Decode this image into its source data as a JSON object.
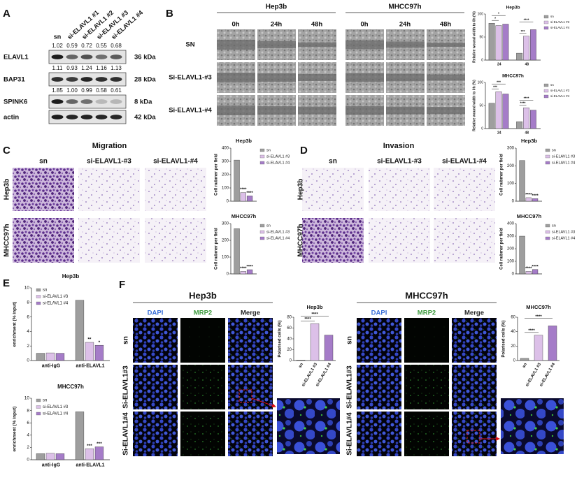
{
  "A": {
    "label": "A",
    "columns": [
      "sn",
      "si-ELAVL1 #1",
      "si-ELAVL1 #2",
      "si-ELAVL1 #3",
      "si-ELAVL1 #4"
    ],
    "rows": [
      {
        "name": "ELAVL1",
        "quant": [
          "1.02",
          "0.59",
          "0.72",
          "0.55",
          "0.68"
        ],
        "size": "36 kDa"
      },
      {
        "name": "BAP31",
        "quant": [
          "1.11",
          "0.93",
          "1.24",
          "1.16",
          "1.13"
        ],
        "size": "28 kDa"
      },
      {
        "name": "SPINK6",
        "quant": [
          "1.85",
          "1.00",
          "0.99",
          "0.58",
          "0.61"
        ],
        "size": "8 kDa"
      },
      {
        "name": "actin",
        "size": "42 kDa"
      }
    ]
  },
  "B": {
    "label": "B",
    "groups": [
      "Hep3b",
      "MHCC97h"
    ],
    "times": [
      "0h",
      "24h",
      "48h"
    ],
    "rows": [
      "SN",
      "Si-ELAVL1-#3",
      "Si-ELAVL1-#4"
    ],
    "charts": [
      {
        "type": "bar",
        "title": "Hep3b",
        "ylabel": "Relative wound width to 0h (%)",
        "categories": [
          "24",
          "48"
        ],
        "series": [
          {
            "name": "sn",
            "color": "#9e9e9e",
            "values": [
              80,
              15
            ]
          },
          {
            "name": "si-ELAVL1 #3",
            "color": "#dcc0e8",
            "values": [
              75,
              52
            ]
          },
          {
            "name": "si-ELAVL1 #4",
            "color": "#a57cc8",
            "values": [
              78,
              66
            ]
          }
        ],
        "ylim": [
          0,
          100
        ],
        "yticks": [
          0,
          50,
          100
        ],
        "stars": [
          "*",
          "*",
          "***",
          "****"
        ]
      },
      {
        "type": "bar",
        "title": "MHCC97h",
        "ylabel": "Relative wound width to 0h (%)",
        "categories": [
          "24",
          "48"
        ],
        "series": [
          {
            "name": "sn",
            "color": "#9e9e9e",
            "values": [
              55,
              15
            ]
          },
          {
            "name": "si-ELAVL1 #3",
            "color": "#dcc0e8",
            "values": [
              80,
              45
            ]
          },
          {
            "name": "si-ELAVL1 #4",
            "color": "#a57cc8",
            "values": [
              75,
              40
            ]
          }
        ],
        "ylim": [
          0,
          100
        ],
        "yticks": [
          0,
          50,
          100
        ],
        "stars": [
          "***",
          "***",
          "****",
          "****"
        ]
      }
    ]
  },
  "C": {
    "label": "C",
    "title": "Migration",
    "columns": [
      "sn",
      "si-ELAVL1-#3",
      "si-ELAVL1-#4"
    ],
    "rows": [
      "Hep3b",
      "MHCC97h"
    ],
    "charts": [
      {
        "type": "bar",
        "title": "Hep3b",
        "ylabel": "Cell nubmer per field",
        "series": [
          {
            "name": "sn",
            "color": "#9e9e9e",
            "values": [
              310
            ]
          },
          {
            "name": "si-ELAVL1 #3",
            "color": "#dcc0e8",
            "values": [
              65
            ]
          },
          {
            "name": "si-ELAVL1 #4",
            "color": "#a57cc8",
            "values": [
              40
            ]
          }
        ],
        "ylim": [
          0,
          400
        ],
        "yticks": [
          0,
          100,
          200,
          300,
          400
        ],
        "stars": [
          "****",
          "****"
        ]
      },
      {
        "type": "bar",
        "title": "MHCC97h",
        "ylabel": "Cell nubmer per field",
        "series": [
          {
            "name": "sn",
            "color": "#9e9e9e",
            "values": [
              270
            ]
          },
          {
            "name": "si-ELAVL1 #3",
            "color": "#dcc0e8",
            "values": [
              15
            ]
          },
          {
            "name": "si-ELAVL1 #4",
            "color": "#a57cc8",
            "values": [
              25
            ]
          }
        ],
        "ylim": [
          0,
          300
        ],
        "yticks": [
          0,
          100,
          200,
          300
        ],
        "stars": [
          "****",
          "****"
        ]
      }
    ]
  },
  "D": {
    "label": "D",
    "title": "Invasion",
    "columns": [
      "sn",
      "si-ELAVL1-#3",
      "si-ELAVL1-#4"
    ],
    "rows": [
      "Hep3b",
      "MHCC97h"
    ],
    "charts": [
      {
        "type": "bar",
        "title": "Hep3b",
        "ylabel": "Cell nubmer per field",
        "series": [
          {
            "name": "sn",
            "color": "#9e9e9e",
            "values": [
              230
            ]
          },
          {
            "name": "si-ELAVL1 #3",
            "color": "#dcc0e8",
            "values": [
              20
            ]
          },
          {
            "name": "si-ELAVL1 #4",
            "color": "#a57cc8",
            "values": [
              15
            ]
          }
        ],
        "ylim": [
          0,
          300
        ],
        "yticks": [
          0,
          100,
          200,
          300
        ],
        "stars": [
          "****",
          "****"
        ]
      },
      {
        "type": "bar",
        "title": "MHCC97h",
        "ylabel": "Cell nubmer per field",
        "series": [
          {
            "name": "sn",
            "color": "#9e9e9e",
            "values": [
              300
            ]
          },
          {
            "name": "si-ELAVL1 #3",
            "color": "#dcc0e8",
            "values": [
              20
            ]
          },
          {
            "name": "si-ELAVL1 #4",
            "color": "#a57cc8",
            "values": [
              35
            ]
          }
        ],
        "ylim": [
          0,
          400
        ],
        "yticks": [
          0,
          100,
          200,
          300,
          400
        ],
        "stars": [
          "****",
          "****"
        ]
      }
    ]
  },
  "E": {
    "label": "E",
    "charts": [
      {
        "type": "bar",
        "title": "Hep3b",
        "ylabel": "enrichment (% input)",
        "categories": [
          "anti-IgG",
          "anti-ELAVL1"
        ],
        "series": [
          {
            "name": "sn",
            "color": "#9e9e9e",
            "values": [
              1,
              8.3
            ]
          },
          {
            "name": "si-ELAVL1 #3",
            "color": "#dcc0e8",
            "values": [
              1.05,
              2.5
            ]
          },
          {
            "name": "si-ELAVL1 #4",
            "color": "#a57cc8",
            "values": [
              1,
              2.1
            ]
          }
        ],
        "ylim": [
          0,
          10
        ],
        "yticks": [
          0,
          2,
          4,
          6,
          8,
          10
        ],
        "stars": [
          "**",
          "*"
        ]
      },
      {
        "type": "bar",
        "title": "MHCC97h",
        "ylabel": "enrichment (% input)",
        "categories": [
          "anti-IgG",
          "anti-ELAVL1"
        ],
        "series": [
          {
            "name": "sn",
            "color": "#9e9e9e",
            "values": [
              1,
              7.8
            ]
          },
          {
            "name": "si-ELAVL1 #3",
            "color": "#dcc0e8",
            "values": [
              1.05,
              1.8
            ]
          },
          {
            "name": "si-ELAVL1 #4",
            "color": "#a57cc8",
            "values": [
              1,
              2.1
            ]
          }
        ],
        "ylim": [
          0,
          10
        ],
        "yticks": [
          0,
          2,
          4,
          6,
          8,
          10
        ],
        "stars": [
          "***",
          "***"
        ]
      }
    ]
  },
  "F": {
    "label": "F",
    "groups": [
      {
        "title": "Hep3b",
        "channels": [
          "DAPI",
          "MRP2",
          "Merge"
        ],
        "rows": [
          "sn",
          "Si-ELAVL1#3",
          "Si-ELAVL1#4"
        ],
        "chart": {
          "type": "bar",
          "title": "Hep3b",
          "ylabel": "Polarised cells (%)",
          "categories": [
            "sn",
            "si-ELAVL1 #3",
            "si-ELAVL1 #4"
          ],
          "values": [
            1,
            68,
            47
          ],
          "colors": [
            "#9e9e9e",
            "#dcc0e8",
            "#a57cc8"
          ],
          "ylim": [
            0,
            80
          ],
          "yticks": [
            0,
            20,
            40,
            60,
            80
          ],
          "stars": [
            "****",
            "****"
          ]
        }
      },
      {
        "title": "MHCC97h",
        "channels": [
          "DAPI",
          "MRP2",
          "Merge"
        ],
        "rows": [
          "sn",
          "Si-ELAVL1#3",
          "Si-ELAVL1#4"
        ],
        "chart": {
          "type": "bar",
          "title": "MHCC97h",
          "ylabel": "Polarised cells (%)",
          "categories": [
            "sn",
            "si-ELAVL1 #3",
            "si-ELAVL1 #4"
          ],
          "values": [
            3,
            35,
            48
          ],
          "colors": [
            "#9e9e9e",
            "#dcc0e8",
            "#a57cc8"
          ],
          "ylim": [
            0,
            60
          ],
          "yticks": [
            0,
            20,
            40,
            60
          ],
          "stars": [
            "****",
            "****"
          ]
        }
      }
    ]
  }
}
